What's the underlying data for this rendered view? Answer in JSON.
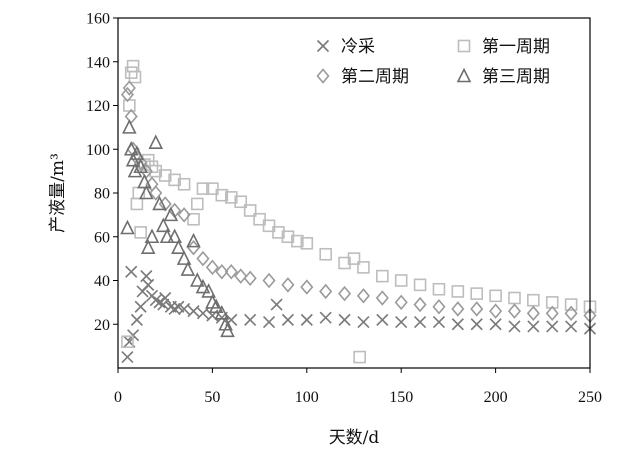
{
  "chart_data": {
    "type": "scatter",
    "xlabel": "天数/d",
    "ylabel": "产液量/m³",
    "xlim": [
      0,
      250
    ],
    "ylim": [
      0,
      160
    ],
    "xticks": [
      "0",
      "50",
      "100",
      "150",
      "200",
      "250"
    ],
    "yticks": [
      "20",
      "40",
      "60",
      "80",
      "100",
      "120",
      "140",
      "160"
    ],
    "grid": false,
    "legend_position": "top-right",
    "series": [
      {
        "name": "冷采",
        "marker": "x",
        "color": "#7a7a7a",
        "points": [
          [
            5,
            5
          ],
          [
            6,
            12
          ],
          [
            7,
            44
          ],
          [
            8,
            15
          ],
          [
            10,
            22
          ],
          [
            12,
            28
          ],
          [
            13,
            35
          ],
          [
            15,
            42
          ],
          [
            16,
            38
          ],
          [
            18,
            33
          ],
          [
            20,
            31
          ],
          [
            22,
            30
          ],
          [
            24,
            29
          ],
          [
            25,
            32
          ],
          [
            28,
            28
          ],
          [
            30,
            27
          ],
          [
            32,
            28
          ],
          [
            35,
            27
          ],
          [
            40,
            26
          ],
          [
            45,
            25
          ],
          [
            50,
            24
          ],
          [
            55,
            23
          ],
          [
            60,
            22
          ],
          [
            70,
            22
          ],
          [
            80,
            21
          ],
          [
            84,
            29
          ],
          [
            90,
            22
          ],
          [
            100,
            22
          ],
          [
            110,
            23
          ],
          [
            120,
            22
          ],
          [
            130,
            21
          ],
          [
            140,
            22
          ],
          [
            150,
            21
          ],
          [
            160,
            21
          ],
          [
            170,
            21
          ],
          [
            180,
            20
          ],
          [
            190,
            20
          ],
          [
            200,
            20
          ],
          [
            210,
            19
          ],
          [
            220,
            19
          ],
          [
            230,
            19
          ],
          [
            240,
            19
          ],
          [
            250,
            18
          ]
        ]
      },
      {
        "name": "第一周期",
        "marker": "square",
        "color": "#bdbdbd",
        "points": [
          [
            5,
            12
          ],
          [
            6,
            120
          ],
          [
            7,
            135
          ],
          [
            8,
            138
          ],
          [
            9,
            133
          ],
          [
            10,
            75
          ],
          [
            11,
            80
          ],
          [
            12,
            62
          ],
          [
            14,
            93
          ],
          [
            16,
            95
          ],
          [
            18,
            92
          ],
          [
            20,
            90
          ],
          [
            25,
            88
          ],
          [
            30,
            86
          ],
          [
            35,
            84
          ],
          [
            40,
            68
          ],
          [
            42,
            75
          ],
          [
            45,
            82
          ],
          [
            50,
            82
          ],
          [
            55,
            79
          ],
          [
            60,
            78
          ],
          [
            65,
            76
          ],
          [
            70,
            72
          ],
          [
            75,
            68
          ],
          [
            80,
            65
          ],
          [
            85,
            62
          ],
          [
            90,
            60
          ],
          [
            95,
            58
          ],
          [
            100,
            57
          ],
          [
            110,
            52
          ],
          [
            120,
            48
          ],
          [
            125,
            50
          ],
          [
            128,
            5
          ],
          [
            130,
            46
          ],
          [
            140,
            42
          ],
          [
            150,
            40
          ],
          [
            160,
            38
          ],
          [
            170,
            36
          ],
          [
            180,
            35
          ],
          [
            190,
            34
          ],
          [
            200,
            33
          ],
          [
            210,
            32
          ],
          [
            220,
            31
          ],
          [
            230,
            30
          ],
          [
            240,
            29
          ],
          [
            250,
            28
          ]
        ]
      },
      {
        "name": "第二周期",
        "marker": "diamond",
        "color": "#9a9a9a",
        "points": [
          [
            5,
            125
          ],
          [
            6,
            128
          ],
          [
            7,
            115
          ],
          [
            8,
            100
          ],
          [
            10,
            96
          ],
          [
            12,
            94
          ],
          [
            15,
            90
          ],
          [
            18,
            84
          ],
          [
            20,
            80
          ],
          [
            25,
            75
          ],
          [
            30,
            72
          ],
          [
            35,
            70
          ],
          [
            40,
            55
          ],
          [
            45,
            50
          ],
          [
            50,
            46
          ],
          [
            55,
            44
          ],
          [
            60,
            44
          ],
          [
            65,
            42
          ],
          [
            70,
            41
          ],
          [
            80,
            40
          ],
          [
            90,
            38
          ],
          [
            100,
            37
          ],
          [
            110,
            35
          ],
          [
            120,
            34
          ],
          [
            130,
            33
          ],
          [
            140,
            32
          ],
          [
            150,
            30
          ],
          [
            160,
            29
          ],
          [
            170,
            28
          ],
          [
            180,
            27
          ],
          [
            190,
            27
          ],
          [
            200,
            26
          ],
          [
            210,
            26
          ],
          [
            220,
            25
          ],
          [
            230,
            25
          ],
          [
            240,
            25
          ],
          [
            250,
            24
          ]
        ]
      },
      {
        "name": "第三周期",
        "marker": "triangle",
        "color": "#6e6e6e",
        "points": [
          [
            5,
            64
          ],
          [
            6,
            110
          ],
          [
            7,
            100
          ],
          [
            8,
            95
          ],
          [
            9,
            90
          ],
          [
            10,
            98
          ],
          [
            12,
            92
          ],
          [
            14,
            85
          ],
          [
            15,
            80
          ],
          [
            16,
            55
          ],
          [
            18,
            60
          ],
          [
            20,
            103
          ],
          [
            22,
            75
          ],
          [
            24,
            65
          ],
          [
            26,
            60
          ],
          [
            28,
            70
          ],
          [
            30,
            60
          ],
          [
            32,
            55
          ],
          [
            35,
            50
          ],
          [
            37,
            45
          ],
          [
            40,
            58
          ],
          [
            42,
            40
          ],
          [
            45,
            37
          ],
          [
            48,
            35
          ],
          [
            50,
            30
          ],
          [
            52,
            28
          ],
          [
            55,
            25
          ],
          [
            57,
            20
          ],
          [
            58,
            17
          ]
        ]
      }
    ]
  }
}
